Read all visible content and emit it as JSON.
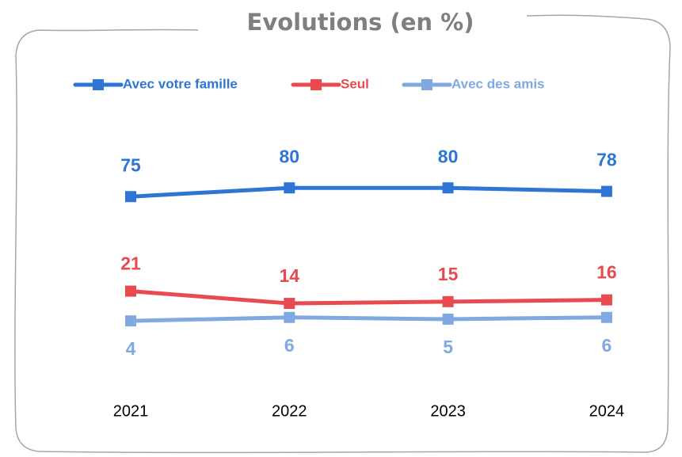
{
  "chart_data": {
    "type": "line",
    "title": "Evolutions (en %)",
    "categories": [
      "2021",
      "2022",
      "2023",
      "2024"
    ],
    "series": [
      {
        "name": "Avec votre famille",
        "color": "#2e75d6",
        "values": [
          75,
          80,
          80,
          78
        ]
      },
      {
        "name": "Seul",
        "color": "#e84a50",
        "values": [
          21,
          14,
          15,
          16
        ]
      },
      {
        "name": "Avec des amis",
        "color": "#7fa9e0",
        "values": [
          4,
          6,
          5,
          6
        ]
      }
    ],
    "ylim": [
      0,
      100
    ],
    "legend": "top"
  }
}
